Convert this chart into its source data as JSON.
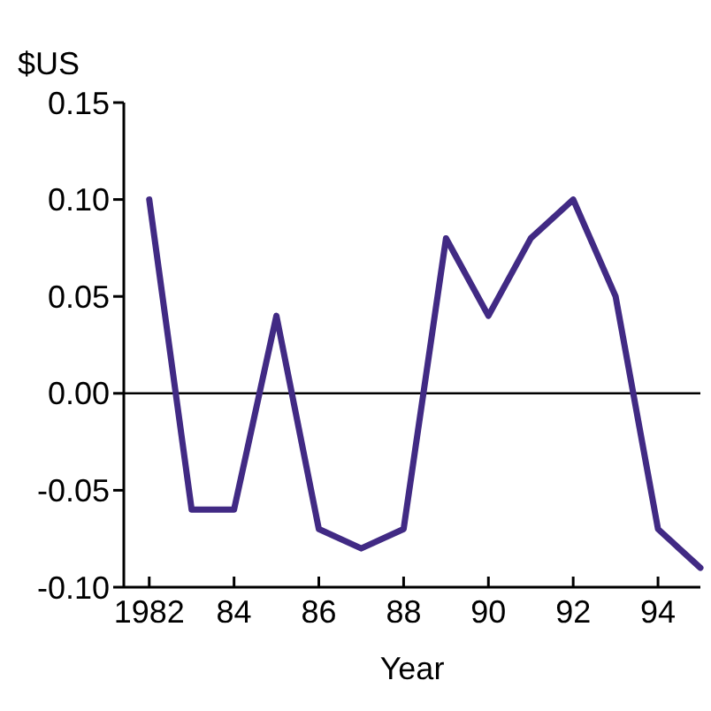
{
  "chart_data": {
    "type": "line",
    "xlabel": "Year",
    "ylabel": "$US",
    "x": [
      1982,
      1983,
      1984,
      1985,
      1986,
      1987,
      1988,
      1989,
      1990,
      1991,
      1992,
      1993,
      1994,
      1995
    ],
    "series": [
      {
        "color": "#412a84",
        "values": [
          0.1,
          -0.06,
          -0.06,
          0.04,
          -0.07,
          -0.08,
          -0.07,
          0.08,
          0.04,
          0.08,
          0.1,
          0.05,
          -0.07,
          -0.09
        ]
      }
    ],
    "xlim": [
      1981.4,
      1995
    ],
    "ylim": [
      -0.1,
      0.15
    ],
    "xticks": [
      1982,
      {
        "value": 1984,
        "label": "84"
      },
      {
        "value": 1986,
        "label": "86"
      },
      {
        "value": 1988,
        "label": "88"
      },
      {
        "value": 1990,
        "label": "90"
      },
      {
        "value": 1992,
        "label": "92"
      },
      {
        "value": 1994,
        "label": "94"
      }
    ],
    "yticks": [
      {
        "value": -0.1,
        "label": "-0.10"
      },
      {
        "value": -0.05,
        "label": "-0.05"
      },
      {
        "value": 0,
        "label": "0.00"
      },
      {
        "value": 0.05,
        "label": "0.05"
      },
      {
        "value": 0.1,
        "label": "0.10"
      },
      {
        "value": 0.15,
        "label": "0.15"
      }
    ],
    "ref_lines": [
      {
        "axis": "y",
        "value": 0,
        "color": "#000000"
      }
    ],
    "grid": false,
    "marker": "none",
    "line_style": "solid"
  }
}
